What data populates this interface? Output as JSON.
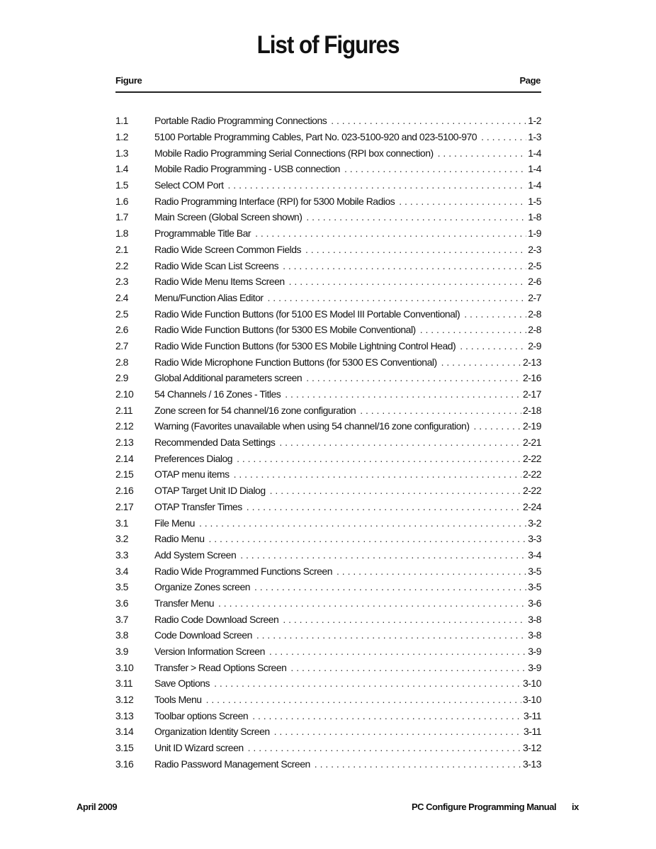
{
  "title": "List of Figures",
  "header": {
    "figure": "Figure",
    "page": "Page"
  },
  "entries": [
    [
      "1.1",
      "Portable Radio Programming Connections",
      "1-2"
    ],
    [
      "1.2",
      "5100 Portable Programming Cables, Part No. 023-5100-920 and 023-5100-970",
      "1-3"
    ],
    [
      "1.3",
      "Mobile Radio Programming Serial Connections (RPI box connection)",
      "1-4"
    ],
    [
      "1.4",
      "Mobile Radio Programming - USB connection",
      "1-4"
    ],
    [
      "1.5",
      "Select COM Port",
      "1-4"
    ],
    [
      "1.6",
      "Radio Programming Interface (RPI) for 5300 Mobile Radios",
      "1-5"
    ],
    [
      "1.7",
      "Main Screen (Global Screen shown)",
      "1-8"
    ],
    [
      "1.8",
      "Programmable Title Bar",
      "1-9"
    ],
    [
      "2.1",
      "Radio Wide Screen Common Fields",
      "2-3"
    ],
    [
      "2.2",
      "Radio Wide Scan List Screens",
      "2-5"
    ],
    [
      "2.3",
      "Radio Wide Menu Items Screen",
      "2-6"
    ],
    [
      "2.4",
      "Menu/Function Alias Editor",
      "2-7"
    ],
    [
      "2.5",
      "Radio Wide Function Buttons (for 5100 ES Model III Portable Conventional)",
      "2-8"
    ],
    [
      "2.6",
      "Radio Wide Function Buttons (for 5300 ES Mobile Conventional)",
      "2-8"
    ],
    [
      "2.7",
      "Radio Wide Function Buttons (for 5300 ES Mobile Lightning Control Head)",
      "2-9"
    ],
    [
      "2.8",
      "Radio Wide Microphone Function Buttons (for 5300 ES Conventional)",
      "2-13"
    ],
    [
      "2.9",
      "Global Additional parameters screen",
      "2-16"
    ],
    [
      "2.10",
      "54 Channels / 16 Zones - Titles",
      "2-17"
    ],
    [
      "2.11",
      "Zone screen for 54 channel/16 zone configuration",
      "2-18"
    ],
    [
      "2.12",
      "Warning (Favorites unavailable when using 54 channel/16 zone configuration)",
      "2-19"
    ],
    [
      "2.13",
      "Recommended Data Settings",
      "2-21"
    ],
    [
      "2.14",
      "Preferences Dialog",
      "2-22"
    ],
    [
      "2.15",
      "OTAP menu items",
      "2-22"
    ],
    [
      "2.16",
      "OTAP Target Unit ID Dialog",
      "2-22"
    ],
    [
      "2.17",
      "OTAP Transfer Times",
      "2-24"
    ],
    [
      "3.1",
      "File Menu",
      "3-2"
    ],
    [
      "3.2",
      "Radio Menu",
      "3-3"
    ],
    [
      "3.3",
      "Add System Screen",
      "3-4"
    ],
    [
      "3.4",
      "Radio Wide Programmed Functions Screen",
      "3-5"
    ],
    [
      "3.5",
      "Organize Zones screen",
      "3-5"
    ],
    [
      "3.6",
      "Transfer Menu",
      "3-6"
    ],
    [
      "3.7",
      "Radio Code Download Screen",
      "3-8"
    ],
    [
      "3.8",
      "Code Download Screen",
      "3-8"
    ],
    [
      "3.9",
      "Version Information Screen",
      "3-9"
    ],
    [
      "3.10",
      "Transfer > Read Options Screen",
      "3-9"
    ],
    [
      "3.11",
      "Save Options",
      "3-10"
    ],
    [
      "3.12",
      "Tools Menu",
      "3-10"
    ],
    [
      "3.13",
      "Toolbar options Screen",
      "3-11"
    ],
    [
      "3.14",
      "Organization Identity Screen",
      "3-11"
    ],
    [
      "3.15",
      "Unit ID Wizard screen",
      "3-12"
    ],
    [
      "3.16",
      "Radio Password Management Screen",
      "3-13"
    ]
  ],
  "footer": {
    "date": "April 2009",
    "manual": "PC Configure Programming Manual",
    "page": "ix"
  }
}
